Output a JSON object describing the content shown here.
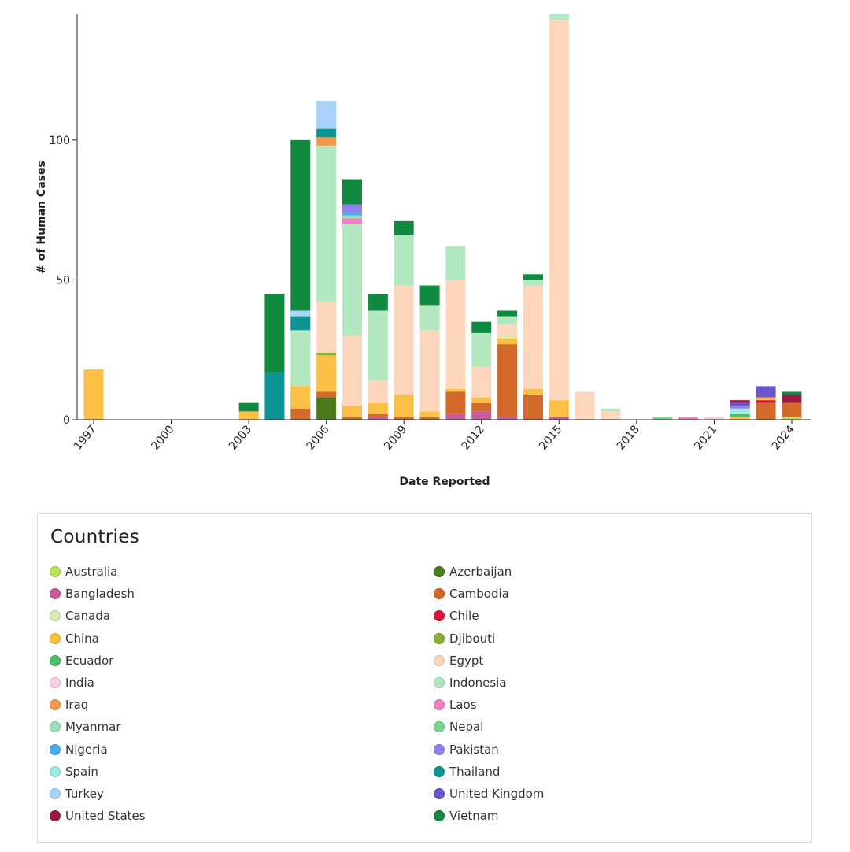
{
  "chart_data": {
    "type": "bar",
    "stacked": true,
    "xlabel": "Date Reported",
    "ylabel": "# of Human Cases",
    "ylim": [
      0,
      145
    ],
    "yticks": [
      0,
      50,
      100
    ],
    "xlim": [
      1997,
      2024
    ],
    "xticks": [
      "1997",
      "2000",
      "2003",
      "2006",
      "2009",
      "2012",
      "2015",
      "2018",
      "2021",
      "2024"
    ],
    "legend_title": "Countries",
    "legend_position": "bottom",
    "countries": [
      {
        "name": "Australia",
        "color": "#b5e35a"
      },
      {
        "name": "Azerbaijan",
        "color": "#4a7a1e"
      },
      {
        "name": "Bangladesh",
        "color": "#c85a9e"
      },
      {
        "name": "Cambodia",
        "color": "#d2692a"
      },
      {
        "name": "Canada",
        "color": "#d8ecb5"
      },
      {
        "name": "Chile",
        "color": "#dc143c"
      },
      {
        "name": "China",
        "color": "#fbbf45"
      },
      {
        "name": "Djibouti",
        "color": "#8aaf35"
      },
      {
        "name": "Ecuador",
        "color": "#4cbb6a"
      },
      {
        "name": "Egypt",
        "color": "#fdd6bc"
      },
      {
        "name": "India",
        "color": "#f9cde7"
      },
      {
        "name": "Indonesia",
        "color": "#b2e8c0"
      },
      {
        "name": "Iraq",
        "color": "#f2994a"
      },
      {
        "name": "Laos",
        "color": "#f080c0"
      },
      {
        "name": "Myanmar",
        "color": "#9ddfb8"
      },
      {
        "name": "Nepal",
        "color": "#78d58e"
      },
      {
        "name": "Nigeria",
        "color": "#4badec"
      },
      {
        "name": "Pakistan",
        "color": "#9180ee"
      },
      {
        "name": "Spain",
        "color": "#9debe4"
      },
      {
        "name": "Thailand",
        "color": "#0d9494"
      },
      {
        "name": "Turkey",
        "color": "#a9d3f7"
      },
      {
        "name": "United Kingdom",
        "color": "#6a55cc"
      },
      {
        "name": "United States",
        "color": "#9b1a40"
      },
      {
        "name": "Vietnam",
        "color": "#108a3e"
      }
    ],
    "bars": [
      {
        "year": 1997,
        "segments": [
          [
            "China",
            18
          ]
        ]
      },
      {
        "year": 2003,
        "segments": [
          [
            "China",
            3
          ],
          [
            "Vietnam",
            3
          ]
        ]
      },
      {
        "year": 2004,
        "segments": [
          [
            "Thailand",
            17
          ],
          [
            "Vietnam",
            28
          ]
        ]
      },
      {
        "year": 2005,
        "segments": [
          [
            "Cambodia",
            4
          ],
          [
            "China",
            8
          ],
          [
            "Indonesia",
            20
          ],
          [
            "Thailand",
            5
          ],
          [
            "Turkey",
            2
          ],
          [
            "Vietnam",
            61
          ]
        ]
      },
      {
        "year": 2006,
        "segments": [
          [
            "Azerbaijan",
            8
          ],
          [
            "Cambodia",
            2
          ],
          [
            "China",
            13
          ],
          [
            "Djibouti",
            1
          ],
          [
            "Egypt",
            18
          ],
          [
            "Indonesia",
            56
          ],
          [
            "Iraq",
            3
          ],
          [
            "Thailand",
            3
          ],
          [
            "Turkey",
            10
          ]
        ]
      },
      {
        "year": 2007,
        "segments": [
          [
            "Cambodia",
            1
          ],
          [
            "China",
            4
          ],
          [
            "Egypt",
            25
          ],
          [
            "Indonesia",
            40
          ],
          [
            "Laos",
            2
          ],
          [
            "Myanmar",
            1
          ],
          [
            "Nigeria",
            1
          ],
          [
            "Pakistan",
            3
          ],
          [
            "Vietnam",
            9
          ]
        ]
      },
      {
        "year": 2008,
        "segments": [
          [
            "Bangladesh",
            1
          ],
          [
            "Cambodia",
            1
          ],
          [
            "China",
            4
          ],
          [
            "Egypt",
            8
          ],
          [
            "Indonesia",
            25
          ],
          [
            "Vietnam",
            6
          ]
        ]
      },
      {
        "year": 2009,
        "segments": [
          [
            "Cambodia",
            1
          ],
          [
            "China",
            8
          ],
          [
            "Egypt",
            39
          ],
          [
            "Indonesia",
            18
          ],
          [
            "Vietnam",
            5
          ]
        ]
      },
      {
        "year": 2010,
        "segments": [
          [
            "Cambodia",
            1
          ],
          [
            "China",
            2
          ],
          [
            "Egypt",
            29
          ],
          [
            "Indonesia",
            9
          ],
          [
            "Vietnam",
            7
          ]
        ]
      },
      {
        "year": 2011,
        "segments": [
          [
            "Bangladesh",
            2
          ],
          [
            "Cambodia",
            8
          ],
          [
            "China",
            1
          ],
          [
            "Egypt",
            39
          ],
          [
            "Indonesia",
            12
          ]
        ]
      },
      {
        "year": 2012,
        "segments": [
          [
            "Bangladesh",
            3
          ],
          [
            "Cambodia",
            3
          ],
          [
            "China",
            2
          ],
          [
            "Egypt",
            11
          ],
          [
            "Indonesia",
            12
          ],
          [
            "Vietnam",
            4
          ]
        ]
      },
      {
        "year": 2013,
        "segments": [
          [
            "Bangladesh",
            1
          ],
          [
            "Cambodia",
            26
          ],
          [
            "China",
            2
          ],
          [
            "Canada",
            1
          ],
          [
            "Egypt",
            4
          ],
          [
            "Indonesia",
            3
          ],
          [
            "Vietnam",
            2
          ]
        ]
      },
      {
        "year": 2014,
        "segments": [
          [
            "Cambodia",
            9
          ],
          [
            "China",
            2
          ],
          [
            "Egypt",
            37
          ],
          [
            "Indonesia",
            2
          ],
          [
            "Vietnam",
            2
          ]
        ]
      },
      {
        "year": 2015,
        "segments": [
          [
            "Bangladesh",
            1
          ],
          [
            "China",
            6
          ],
          [
            "Egypt",
            136
          ],
          [
            "Indonesia",
            2
          ]
        ]
      },
      {
        "year": 2016,
        "segments": [
          [
            "Egypt",
            10
          ]
        ]
      },
      {
        "year": 2017,
        "segments": [
          [
            "Egypt",
            3
          ],
          [
            "Indonesia",
            1
          ]
        ]
      },
      {
        "year": 2019,
        "segments": [
          [
            "Nepal",
            1
          ]
        ]
      },
      {
        "year": 2020,
        "segments": [
          [
            "Laos",
            1
          ]
        ]
      },
      {
        "year": 2021,
        "segments": [
          [
            "India",
            1
          ]
        ]
      },
      {
        "year": 2022,
        "segments": [
          [
            "China",
            1
          ],
          [
            "Ecuador",
            1
          ],
          [
            "Spain",
            2
          ],
          [
            "Pakistan",
            1
          ],
          [
            "United Kingdom",
            1
          ],
          [
            "United States",
            1
          ]
        ]
      },
      {
        "year": 2023,
        "segments": [
          [
            "Cambodia",
            6
          ],
          [
            "Chile",
            1
          ],
          [
            "China",
            1
          ],
          [
            "United Kingdom",
            4
          ]
        ]
      },
      {
        "year": 2024,
        "segments": [
          [
            "Australia",
            1
          ],
          [
            "Cambodia",
            5
          ],
          [
            "United States",
            3
          ],
          [
            "Vietnam",
            1
          ]
        ]
      }
    ]
  }
}
